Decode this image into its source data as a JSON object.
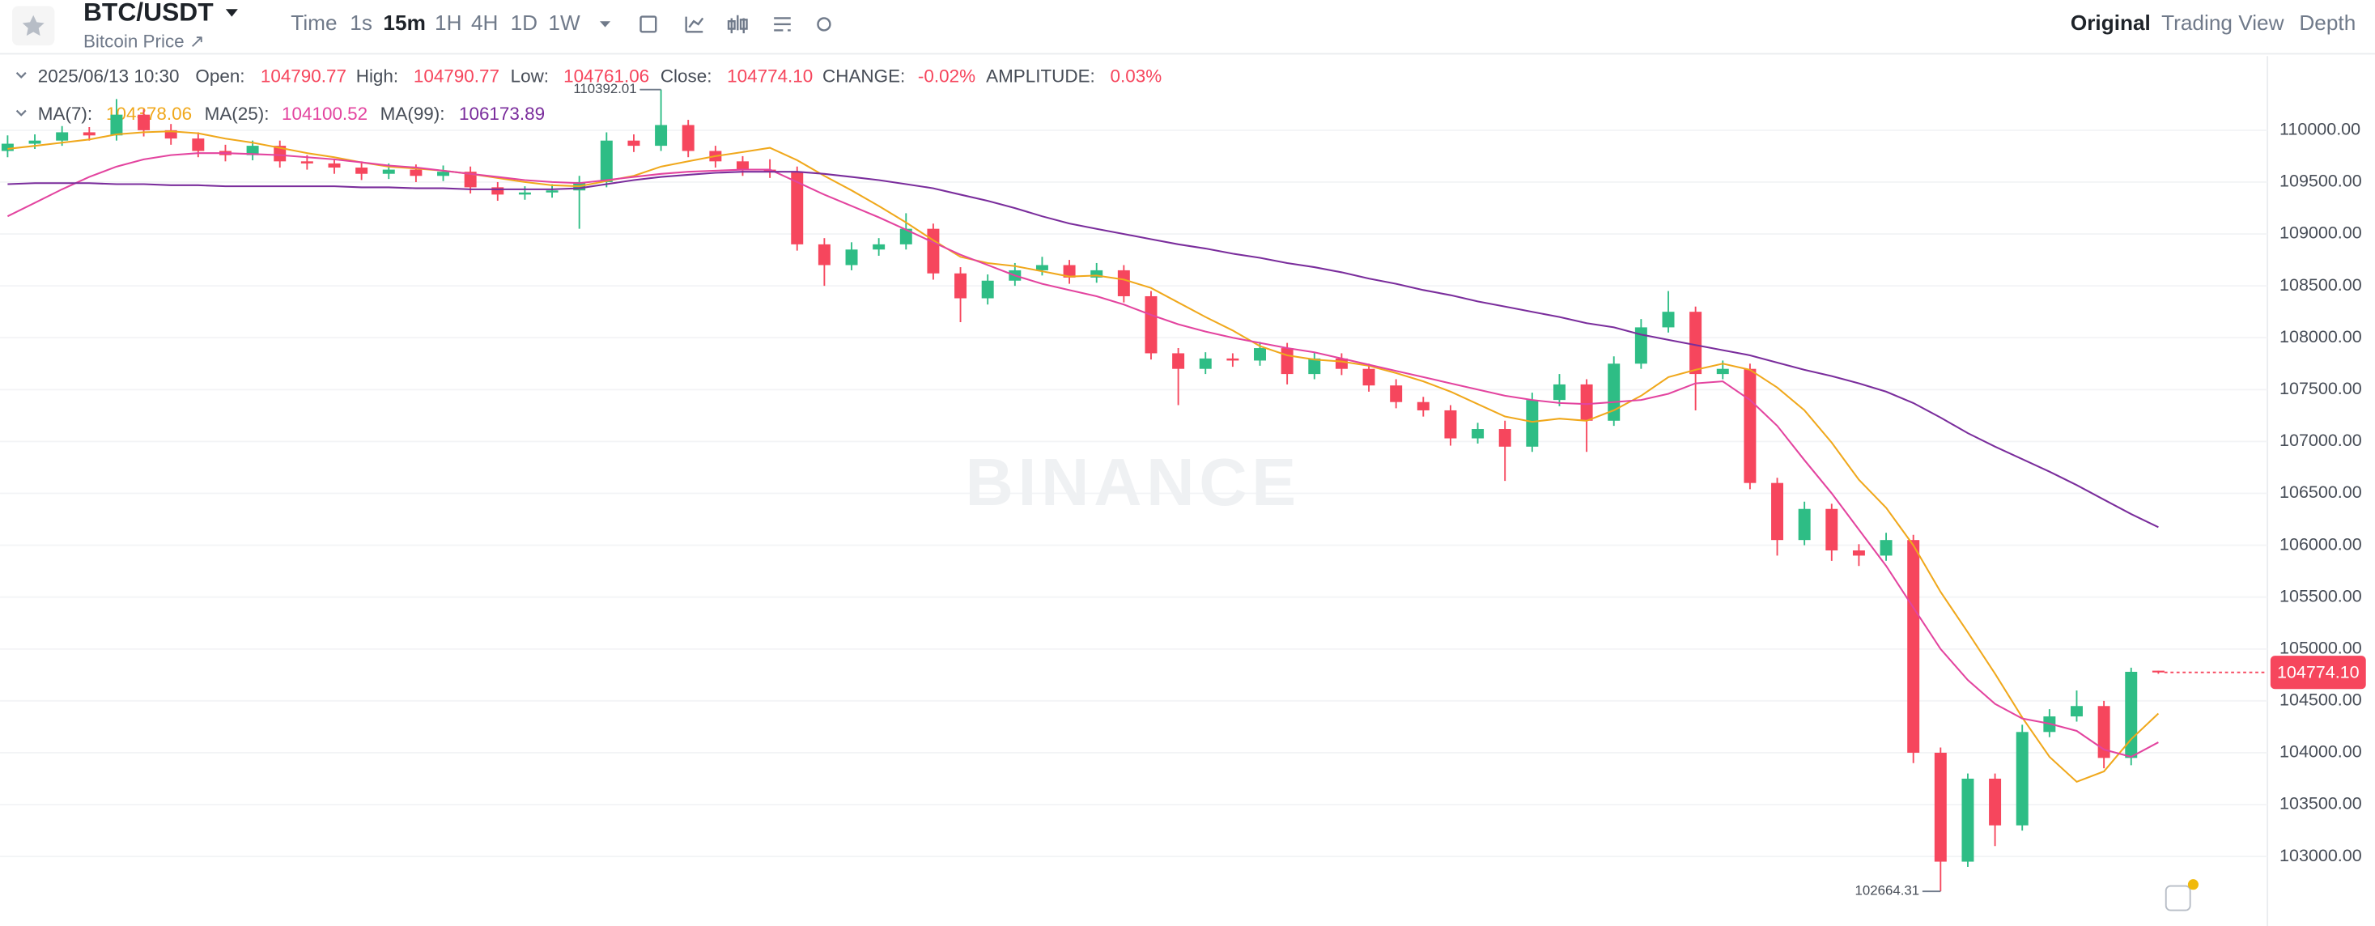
{
  "header": {
    "symbol": "BTC/USDT",
    "subtitle": "Bitcoin Price ↗",
    "intervals": [
      "Time",
      "1s",
      "15m",
      "1H",
      "4H",
      "1D",
      "1W"
    ],
    "active_interval": "15m",
    "views": [
      "Original",
      "Trading View",
      "Depth"
    ],
    "active_view": "Original"
  },
  "info": {
    "date": "2025/06/13 10:30",
    "items": [
      {
        "label": "Open:",
        "value": "104790.77"
      },
      {
        "label": "High:",
        "value": "104790.77"
      },
      {
        "label": "Low:",
        "value": "104761.06"
      },
      {
        "label": "Close:",
        "value": "104774.10"
      },
      {
        "label": "CHANGE:",
        "value": "-0.02%"
      },
      {
        "label": "AMPLITUDE:",
        "value": "0.03%"
      }
    ]
  },
  "chart_data": {
    "type": "candlestick",
    "watermark": "BINANCE",
    "up_color": "#2ebd85",
    "down_color": "#f6465d",
    "last_price_label": "104774.10",
    "open": [
      109800,
      109870,
      109900,
      109980,
      109950,
      110150,
      110000,
      109920,
      109800,
      109760,
      109850,
      109700,
      109680,
      109640,
      109580,
      109620,
      109560,
      109600,
      109450,
      109380,
      109400,
      109420,
      109500,
      109900,
      109850,
      110050,
      109800,
      109700,
      109620,
      109600,
      108900,
      108700,
      108850,
      108900,
      109050,
      108620,
      108380,
      108550,
      108650,
      108700,
      108580,
      108650,
      108400,
      107850,
      107700,
      107800,
      107780,
      107900,
      107650,
      107800,
      107700,
      107540,
      107380,
      107300,
      107030,
      107120,
      106950,
      107400,
      107550,
      107200,
      107750,
      108100,
      108250,
      107650,
      107700,
      106600,
      106050,
      106350,
      105950,
      105900,
      106050,
      104000,
      102950,
      103750,
      103300,
      104200,
      104350,
      104450,
      103950,
      104790.77
    ],
    "high": [
      109950,
      109960,
      110040,
      110030,
      110300,
      110200,
      110060,
      109980,
      109860,
      109900,
      109900,
      109760,
      109720,
      109700,
      109680,
      109670,
      109660,
      109650,
      109500,
      109460,
      109480,
      109560,
      109980,
      109960,
      110392.01,
      110100,
      109850,
      109750,
      109720,
      109650,
      108960,
      108920,
      108960,
      109200,
      109100,
      108680,
      108610,
      108720,
      108780,
      108750,
      108720,
      108700,
      108450,
      107900,
      107860,
      107850,
      107960,
      107950,
      107860,
      107850,
      107750,
      107600,
      107430,
      107350,
      107180,
      107200,
      107470,
      107650,
      107600,
      107820,
      108180,
      108450,
      108300,
      107780,
      107750,
      106650,
      106420,
      106400,
      106010,
      106120,
      106100,
      104050,
      103800,
      103800,
      104270,
      104420,
      104600,
      104500,
      104820,
      104790.77
    ],
    "low": [
      109740,
      109820,
      109850,
      109900,
      109900,
      109940,
      109860,
      109740,
      109700,
      109710,
      109640,
      109620,
      109580,
      109520,
      109530,
      109500,
      109510,
      109390,
      109320,
      109330,
      109350,
      109050,
      109450,
      109790,
      109800,
      109740,
      109640,
      109560,
      109540,
      108840,
      108500,
      108650,
      108790,
      108850,
      108560,
      108150,
      108320,
      108500,
      108600,
      108520,
      108530,
      108340,
      107790,
      107350,
      107650,
      107720,
      107730,
      107550,
      107600,
      107640,
      107480,
      107320,
      107240,
      106960,
      106980,
      106620,
      106900,
      107340,
      106900,
      107150,
      107700,
      108050,
      107300,
      107600,
      106540,
      105900,
      106000,
      105850,
      105800,
      105850,
      103900,
      102664.31,
      102900,
      103100,
      103250,
      104150,
      104300,
      103850,
      103880,
      104761.06
    ],
    "close": [
      109870,
      109900,
      109980,
      109950,
      110150,
      110000,
      109920,
      109800,
      109760,
      109850,
      109700,
      109680,
      109640,
      109580,
      109620,
      109560,
      109600,
      109450,
      109380,
      109400,
      109420,
      109500,
      109900,
      109850,
      110050,
      109800,
      109700,
      109620,
      109600,
      108900,
      108700,
      108850,
      108900,
      109050,
      108620,
      108380,
      108550,
      108650,
      108700,
      108580,
      108650,
      108400,
      107850,
      107700,
      107800,
      107780,
      107900,
      107650,
      107800,
      107700,
      107540,
      107380,
      107300,
      107030,
      107120,
      106950,
      107400,
      107550,
      107200,
      107750,
      108100,
      108250,
      107650,
      107700,
      106600,
      106050,
      106350,
      105950,
      105900,
      106050,
      104000,
      102950,
      103750,
      103300,
      104200,
      104350,
      104450,
      103950,
      104780,
      104774.1
    ],
    "series": [
      {
        "name": "MA(7):",
        "color": "#f0a81c",
        "values": [
          109820,
          109850,
          109880,
          109910,
          109960,
          109980,
          109990,
          109970,
          109920,
          109880,
          109830,
          109780,
          109740,
          109690,
          109650,
          109630,
          109610,
          109580,
          109540,
          109500,
          109470,
          109460,
          109510,
          109560,
          109650,
          109700,
          109750,
          109790,
          109830,
          109710,
          109560,
          109420,
          109270,
          109110,
          108940,
          108780,
          108720,
          108690,
          108640,
          108590,
          108600,
          108560,
          108480,
          108340,
          108200,
          108070,
          107920,
          107830,
          107790,
          107770,
          107730,
          107660,
          107580,
          107480,
          107360,
          107240,
          107190,
          107220,
          107200,
          107300,
          107440,
          107620,
          107690,
          107750,
          107690,
          107520,
          107300,
          106990,
          106630,
          106360,
          106000,
          105550,
          105160,
          104760,
          104340,
          103960,
          103720,
          103820,
          104130,
          104378.06
        ]
      },
      {
        "name": "MA(25):",
        "color": "#e3449f",
        "values": [
          109170,
          109300,
          109430,
          109550,
          109650,
          109720,
          109760,
          109780,
          109780,
          109770,
          109760,
          109740,
          109720,
          109690,
          109660,
          109640,
          109610,
          109580,
          109550,
          109520,
          109500,
          109490,
          109520,
          109550,
          109580,
          109600,
          109610,
          109620,
          109620,
          109500,
          109380,
          109270,
          109160,
          109040,
          108920,
          108800,
          108700,
          108600,
          108520,
          108460,
          108400,
          108320,
          108220,
          108130,
          108060,
          108000,
          107950,
          107900,
          107860,
          107800,
          107740,
          107680,
          107620,
          107560,
          107500,
          107440,
          107400,
          107370,
          107360,
          107380,
          107400,
          107460,
          107560,
          107580,
          107400,
          107150,
          106820,
          106500,
          106150,
          105800,
          105400,
          105000,
          104700,
          104470,
          104330,
          104280,
          104210,
          104030,
          103960,
          104100.52
        ]
      },
      {
        "name": "MA(99):",
        "color": "#7a2d9c",
        "values": [
          109480,
          109490,
          109490,
          109490,
          109480,
          109480,
          109470,
          109470,
          109460,
          109460,
          109460,
          109460,
          109460,
          109450,
          109450,
          109440,
          109440,
          109430,
          109430,
          109430,
          109430,
          109440,
          109480,
          109520,
          109550,
          109570,
          109590,
          109600,
          109600,
          109600,
          109580,
          109550,
          109520,
          109480,
          109440,
          109380,
          109320,
          109250,
          109170,
          109100,
          109050,
          109000,
          108950,
          108900,
          108860,
          108810,
          108770,
          108720,
          108680,
          108630,
          108570,
          108520,
          108460,
          108410,
          108350,
          108300,
          108250,
          108200,
          108140,
          108100,
          108030,
          107980,
          107930,
          107880,
          107830,
          107760,
          107690,
          107630,
          107560,
          107480,
          107370,
          107230,
          107080,
          106950,
          106830,
          106710,
          106580,
          106440,
          106300,
          106173.89
        ]
      }
    ],
    "ylim": [
      102330,
      110715
    ],
    "yticks": [
      {
        "value": 103000,
        "label": "103000.00"
      },
      {
        "value": 103500,
        "label": "103500.00"
      },
      {
        "value": 104000,
        "label": "104000.00"
      },
      {
        "value": 104500,
        "label": "104500.00"
      },
      {
        "value": 105000,
        "label": "105000.00"
      },
      {
        "value": 105500,
        "label": "105500.00"
      },
      {
        "value": 106000,
        "label": "106000.00"
      },
      {
        "value": 106500,
        "label": "106500.00"
      },
      {
        "value": 107000,
        "label": "107000.00"
      },
      {
        "value": 107500,
        "label": "107500.00"
      },
      {
        "value": 108000,
        "label": "108000.00"
      },
      {
        "value": 108500,
        "label": "108500.00"
      },
      {
        "value": 109000,
        "label": "109000.00"
      },
      {
        "value": 109500,
        "label": "109500.00"
      },
      {
        "value": 110000,
        "label": "110000.00"
      }
    ],
    "grid": true
  }
}
